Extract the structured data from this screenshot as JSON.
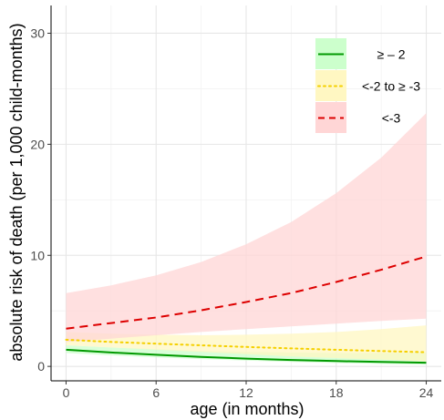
{
  "chart_data": {
    "type": "line",
    "xlabel": "age (in months)",
    "ylabel": "absolute risk of death (per 1,000 child-months)",
    "xlim": [
      -1,
      25
    ],
    "ylim": [
      -1.3,
      32.5
    ],
    "x_ticks": [
      0,
      6,
      12,
      18,
      24
    ],
    "x_tick_labels": [
      "0",
      "6",
      "12",
      "18",
      "24"
    ],
    "y_ticks": [
      0,
      10,
      20,
      30
    ],
    "y_tick_labels": [
      "0",
      "10",
      "20",
      "30"
    ],
    "grid": true,
    "legend_position": "top-right",
    "x": [
      0,
      3,
      6,
      9,
      12,
      15,
      18,
      21,
      24
    ],
    "series": [
      {
        "name": "≥ – 2",
        "style": "solid",
        "color": "#009900",
        "band_color": "#ccffcc",
        "values": [
          1.5,
          1.25,
          1.05,
          0.85,
          0.7,
          0.58,
          0.48,
          0.4,
          0.33
        ],
        "lower": [
          1.2,
          1.0,
          0.82,
          0.66,
          0.52,
          0.4,
          0.3,
          0.22,
          0.15
        ],
        "upper": [
          1.9,
          1.7,
          1.55,
          1.4,
          1.3,
          1.25,
          1.2,
          1.2,
          1.25
        ]
      },
      {
        "name": "<-2 to ≥ -3",
        "style": "dotted",
        "color": "#f5d000",
        "band_color": "#fff7c2",
        "values": [
          2.4,
          2.2,
          2.05,
          1.9,
          1.75,
          1.62,
          1.5,
          1.38,
          1.28
        ],
        "lower": [
          1.9,
          1.7,
          1.5,
          1.3,
          1.1,
          0.9,
          0.75,
          0.6,
          0.45
        ],
        "upper": [
          3.1,
          2.95,
          2.85,
          2.8,
          2.85,
          2.95,
          3.1,
          3.35,
          3.7
        ]
      },
      {
        "name": "<-3",
        "style": "dashed",
        "color": "#dd0000",
        "band_color": "#ffd6d6",
        "values": [
          3.4,
          3.9,
          4.4,
          5.05,
          5.8,
          6.6,
          7.6,
          8.7,
          9.9
        ],
        "lower": [
          2.2,
          2.5,
          2.8,
          3.1,
          3.35,
          3.6,
          3.85,
          4.1,
          4.3
        ],
        "upper": [
          6.6,
          7.3,
          8.2,
          9.4,
          11.0,
          13.0,
          15.6,
          18.8,
          22.8
        ]
      }
    ]
  }
}
